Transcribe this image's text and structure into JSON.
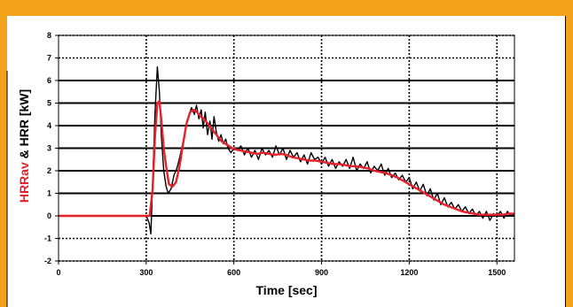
{
  "chart_data": {
    "type": "line",
    "title": "",
    "xlabel": "Time [sec]",
    "ylabel_parts": [
      {
        "text": "HRRav",
        "color": "#e8202a"
      },
      {
        "text": " & HRR [kW]",
        "color": "#000000"
      }
    ],
    "xlim": [
      0,
      1560
    ],
    "ylim": [
      -2,
      8
    ],
    "xticks": [
      0,
      300,
      600,
      900,
      1200,
      1500
    ],
    "yticks": [
      -2,
      -1,
      0,
      1,
      2,
      3,
      4,
      5,
      6,
      7,
      8
    ],
    "grid": {
      "horizontal": "solid above 0, dotted below 0 and at 7-8",
      "vertical": "dotted"
    },
    "series": [
      {
        "color": "#000000",
        "x": [
          0,
          300,
          310,
          316,
          322,
          330,
          338,
          345,
          352,
          360,
          368,
          375,
          385,
          395,
          405,
          415,
          425,
          435,
          445,
          455,
          465,
          472,
          480,
          488,
          495,
          502,
          510,
          518,
          525,
          532,
          540,
          548,
          556,
          564,
          572,
          580,
          590,
          600,
          612,
          624,
          636,
          648,
          660,
          672,
          684,
          696,
          708,
          720,
          732,
          744,
          756,
          768,
          780,
          792,
          804,
          816,
          828,
          840,
          852,
          864,
          876,
          888,
          900,
          912,
          924,
          936,
          948,
          960,
          972,
          984,
          996,
          1008,
          1020,
          1032,
          1044,
          1056,
          1068,
          1080,
          1092,
          1104,
          1116,
          1128,
          1140,
          1152,
          1164,
          1176,
          1188,
          1200,
          1212,
          1224,
          1236,
          1248,
          1260,
          1272,
          1284,
          1296,
          1308,
          1320,
          1332,
          1344,
          1356,
          1368,
          1380,
          1392,
          1404,
          1416,
          1428,
          1440,
          1452,
          1464,
          1476,
          1488,
          1500,
          1512,
          1524,
          1536,
          1548,
          1560
        ],
        "y": [
          0.0,
          0.0,
          -0.3,
          -0.8,
          1.5,
          4.5,
          6.6,
          5.5,
          3.5,
          2.0,
          1.3,
          1.0,
          1.2,
          1.8,
          2.1,
          2.6,
          3.2,
          3.9,
          4.4,
          4.8,
          4.5,
          4.9,
          4.3,
          4.7,
          3.9,
          4.6,
          3.6,
          4.2,
          3.4,
          4.4,
          3.7,
          3.3,
          3.6,
          3.2,
          3.4,
          3.0,
          2.8,
          3.0,
          2.9,
          3.1,
          2.7,
          3.0,
          2.6,
          2.9,
          2.5,
          3.0,
          2.7,
          2.9,
          2.6,
          3.1,
          2.7,
          3.0,
          2.5,
          2.9,
          2.6,
          2.8,
          2.4,
          2.7,
          2.3,
          2.8,
          2.5,
          2.6,
          2.3,
          2.6,
          2.2,
          2.5,
          2.1,
          2.4,
          2.2,
          2.5,
          2.1,
          2.6,
          2.0,
          2.3,
          2.1,
          2.4,
          1.9,
          2.2,
          2.0,
          2.3,
          1.8,
          2.1,
          1.7,
          1.9,
          1.6,
          1.8,
          1.5,
          1.7,
          1.2,
          1.5,
          1.1,
          1.4,
          0.9,
          1.2,
          0.7,
          1.0,
          0.5,
          0.8,
          0.4,
          0.6,
          0.3,
          0.5,
          0.2,
          0.4,
          0.1,
          0.3,
          0.0,
          0.2,
          -0.1,
          0.2,
          -0.2,
          0.1,
          0.0,
          0.2,
          -0.1,
          0.2,
          0.0,
          0.1
        ]
      },
      {
        "color": "#e8202a",
        "x": [
          0,
          300,
          312,
          322,
          330,
          338,
          345,
          352,
          360,
          368,
          378,
          390,
          402,
          414,
          426,
          438,
          450,
          462,
          474,
          486,
          498,
          510,
          522,
          534,
          546,
          558,
          570,
          582,
          594,
          606,
          620,
          640,
          660,
          680,
          700,
          720,
          740,
          760,
          780,
          800,
          820,
          840,
          860,
          880,
          900,
          920,
          940,
          960,
          980,
          1000,
          1020,
          1040,
          1060,
          1080,
          1100,
          1120,
          1140,
          1160,
          1180,
          1200,
          1220,
          1240,
          1260,
          1280,
          1300,
          1320,
          1340,
          1360,
          1380,
          1400,
          1420,
          1440,
          1460,
          1480,
          1500,
          1520,
          1540,
          1560
        ],
        "y": [
          0.0,
          0.0,
          0.0,
          1.2,
          3.5,
          5.0,
          5.1,
          4.2,
          3.0,
          2.2,
          1.4,
          1.3,
          1.5,
          2.2,
          3.2,
          4.1,
          4.6,
          4.7,
          4.6,
          4.4,
          4.3,
          4.1,
          3.9,
          3.7,
          3.5,
          3.3,
          3.2,
          3.1,
          3.0,
          2.95,
          2.9,
          2.85,
          2.8,
          2.75,
          2.8,
          2.75,
          2.7,
          2.75,
          2.7,
          2.6,
          2.55,
          2.5,
          2.45,
          2.45,
          2.4,
          2.35,
          2.3,
          2.3,
          2.25,
          2.2,
          2.2,
          2.15,
          2.1,
          2.0,
          1.95,
          1.9,
          1.8,
          1.7,
          1.55,
          1.4,
          1.25,
          1.1,
          0.95,
          0.8,
          0.65,
          0.5,
          0.4,
          0.3,
          0.2,
          0.15,
          0.1,
          0.05,
          0.05,
          0.05,
          0.05,
          0.05,
          0.1,
          0.1
        ]
      }
    ]
  }
}
